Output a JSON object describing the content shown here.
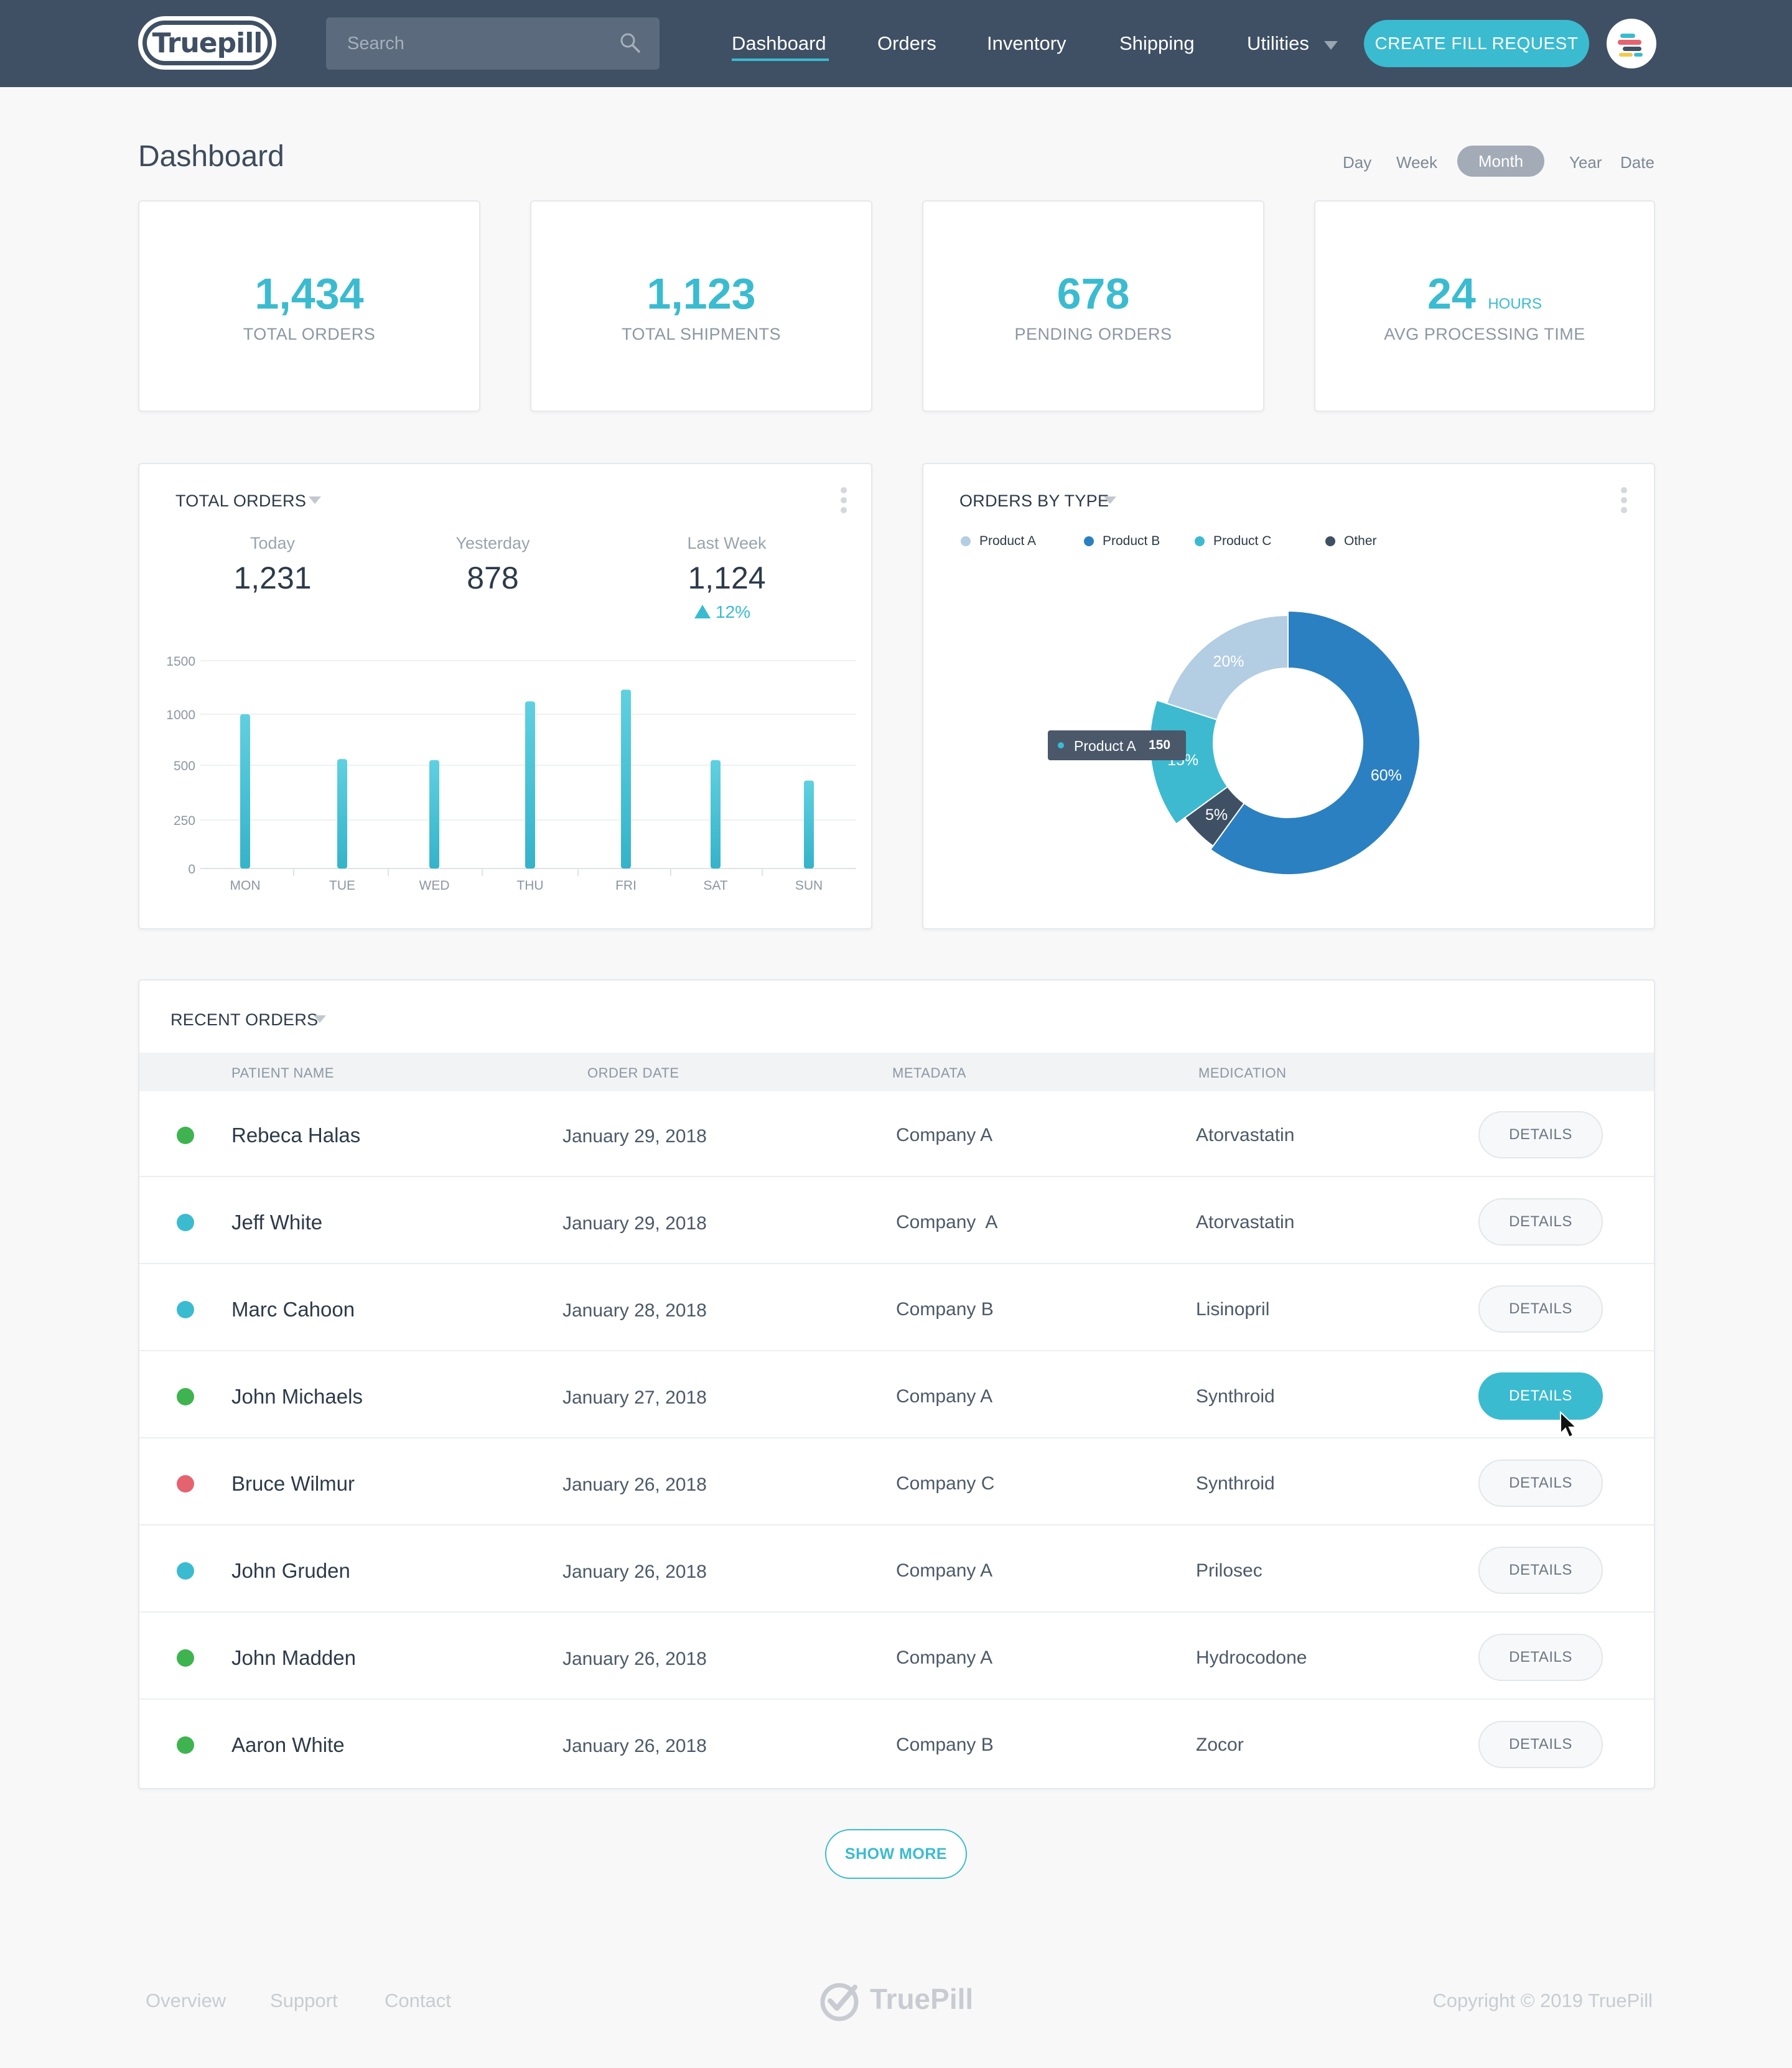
{
  "app": {
    "logo_text": "Truepill",
    "search": {
      "placeholder": "Search",
      "value": ""
    },
    "nav": [
      {
        "label": "Dashboard",
        "active": true
      },
      {
        "label": "Orders"
      },
      {
        "label": "Inventory"
      },
      {
        "label": "Shipping"
      },
      {
        "label": "Utilities"
      }
    ],
    "create_button": "CREATE FILL REQUEST",
    "accent_color": "#3bbbd0",
    "header_color": "#3f5064"
  },
  "page": {
    "title": "Dashboard",
    "periods": [
      "Day",
      "Week",
      "Month",
      "Year",
      "Date"
    ],
    "active_period": "Month"
  },
  "stats": [
    {
      "value": "1,434",
      "unit": "",
      "label": "TOTAL ORDERS"
    },
    {
      "value": "1,123",
      "unit": "",
      "label": "TOTAL SHIPMENTS"
    },
    {
      "value": "678",
      "unit": "",
      "label": "PENDING ORDERS"
    },
    {
      "value": "24",
      "unit": "HOURS",
      "label": "AVG PROCESSING TIME"
    }
  ],
  "total_orders_panel": {
    "title": "TOTAL ORDERS",
    "summary": [
      {
        "label": "Today",
        "value": "1,231"
      },
      {
        "label": "Yesterday",
        "value": "878"
      },
      {
        "label": "Last Week",
        "value": "1,124",
        "delta": "12%"
      }
    ]
  },
  "orders_by_type_panel": {
    "title": "ORDERS BY TYPE",
    "tooltip": {
      "label": "Product A",
      "value": "150"
    }
  },
  "chart_data": [
    {
      "type": "bar",
      "categories": [
        "MON",
        "TUE",
        "WED",
        "THU",
        "FRI",
        "SAT",
        "SUN"
      ],
      "values": [
        1000,
        560,
        550,
        1120,
        1230,
        550,
        430
      ],
      "yticks": [
        "0",
        "250",
        "500",
        "1000",
        "1500"
      ],
      "ytick_values": [
        0,
        250,
        500,
        1000,
        1500
      ],
      "grid": true,
      "bar_color": "#3bbbd0"
    },
    {
      "type": "pie",
      "donut": true,
      "categories": [
        "Product A",
        "Product B",
        "Product C",
        "Other"
      ],
      "values": [
        20,
        60,
        15,
        5
      ],
      "labels": [
        "20%",
        "60%",
        "15%",
        "5%"
      ],
      "colors": [
        "#b3cde3",
        "#2b80c1",
        "#3dbad0",
        "#3f5064"
      ],
      "legend": "top-left"
    }
  ],
  "recent_orders": {
    "title": "RECENT ORDERS",
    "columns": [
      "PATIENT NAME",
      "ORDER DATE",
      "METADATA",
      "MEDICATION"
    ],
    "details_label": "DETAILS",
    "rows": [
      {
        "status_color": "#3fb34f",
        "name": "Rebeca Halas",
        "date": "January 29, 2018",
        "metadata": "Company A",
        "medication": "Atorvastatin"
      },
      {
        "status_color": "#3bbbd0",
        "name": "Jeff White",
        "date": "January 29, 2018",
        "metadata": "Company  A",
        "medication": "Atorvastatin"
      },
      {
        "status_color": "#3bbbd0",
        "name": "Marc Cahoon",
        "date": "January 28, 2018",
        "metadata": "Company B",
        "medication": "Lisinopril"
      },
      {
        "status_color": "#3fb34f",
        "name": "John Michaels",
        "date": "January 27, 2018",
        "metadata": "Company A",
        "medication": "Synthroid",
        "active": true
      },
      {
        "status_color": "#e5636f",
        "name": "Bruce Wilmur",
        "date": "January 26, 2018",
        "metadata": "Company C",
        "medication": "Synthroid"
      },
      {
        "status_color": "#3bbbd0",
        "name": "John Gruden",
        "date": "January 26, 2018",
        "metadata": "Company A",
        "medication": "Prilosec"
      },
      {
        "status_color": "#3fb34f",
        "name": "John Madden",
        "date": "January 26, 2018",
        "metadata": "Company A",
        "medication": "Hydrocodone"
      },
      {
        "status_color": "#3fb34f",
        "name": "Aaron White",
        "date": "January 26, 2018",
        "metadata": "Company B",
        "medication": "Zocor"
      }
    ],
    "show_more": "SHOW MORE"
  },
  "footer": {
    "links": [
      "Overview",
      "Support",
      "Contact"
    ],
    "logo_text": "TruePill",
    "copyright": "Copyright © 2019 TruePill"
  }
}
